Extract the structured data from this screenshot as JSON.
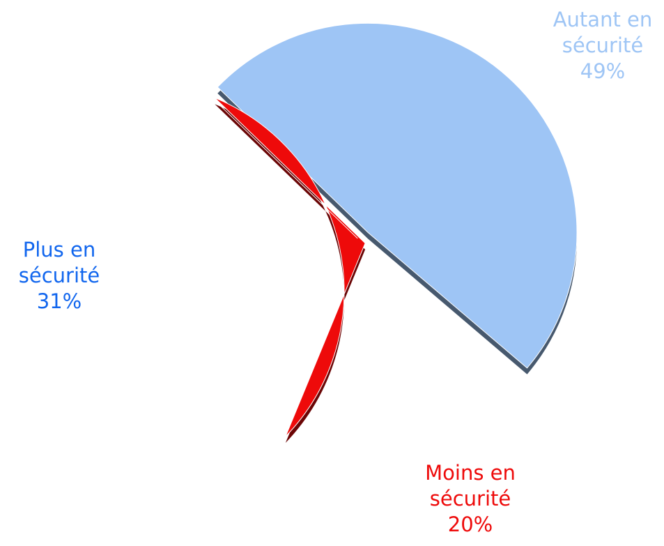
{
  "chart_data": {
    "type": "pie",
    "categories": [
      "Autant en sécurité",
      "Moins en sécurité",
      "Plus en sécurité"
    ],
    "values": [
      49,
      20,
      31
    ],
    "value_labels": [
      "49%",
      "20%",
      "31%"
    ],
    "colors": [
      "#9ec5f5",
      "#ee0a0a",
      "#1166ee"
    ]
  }
}
